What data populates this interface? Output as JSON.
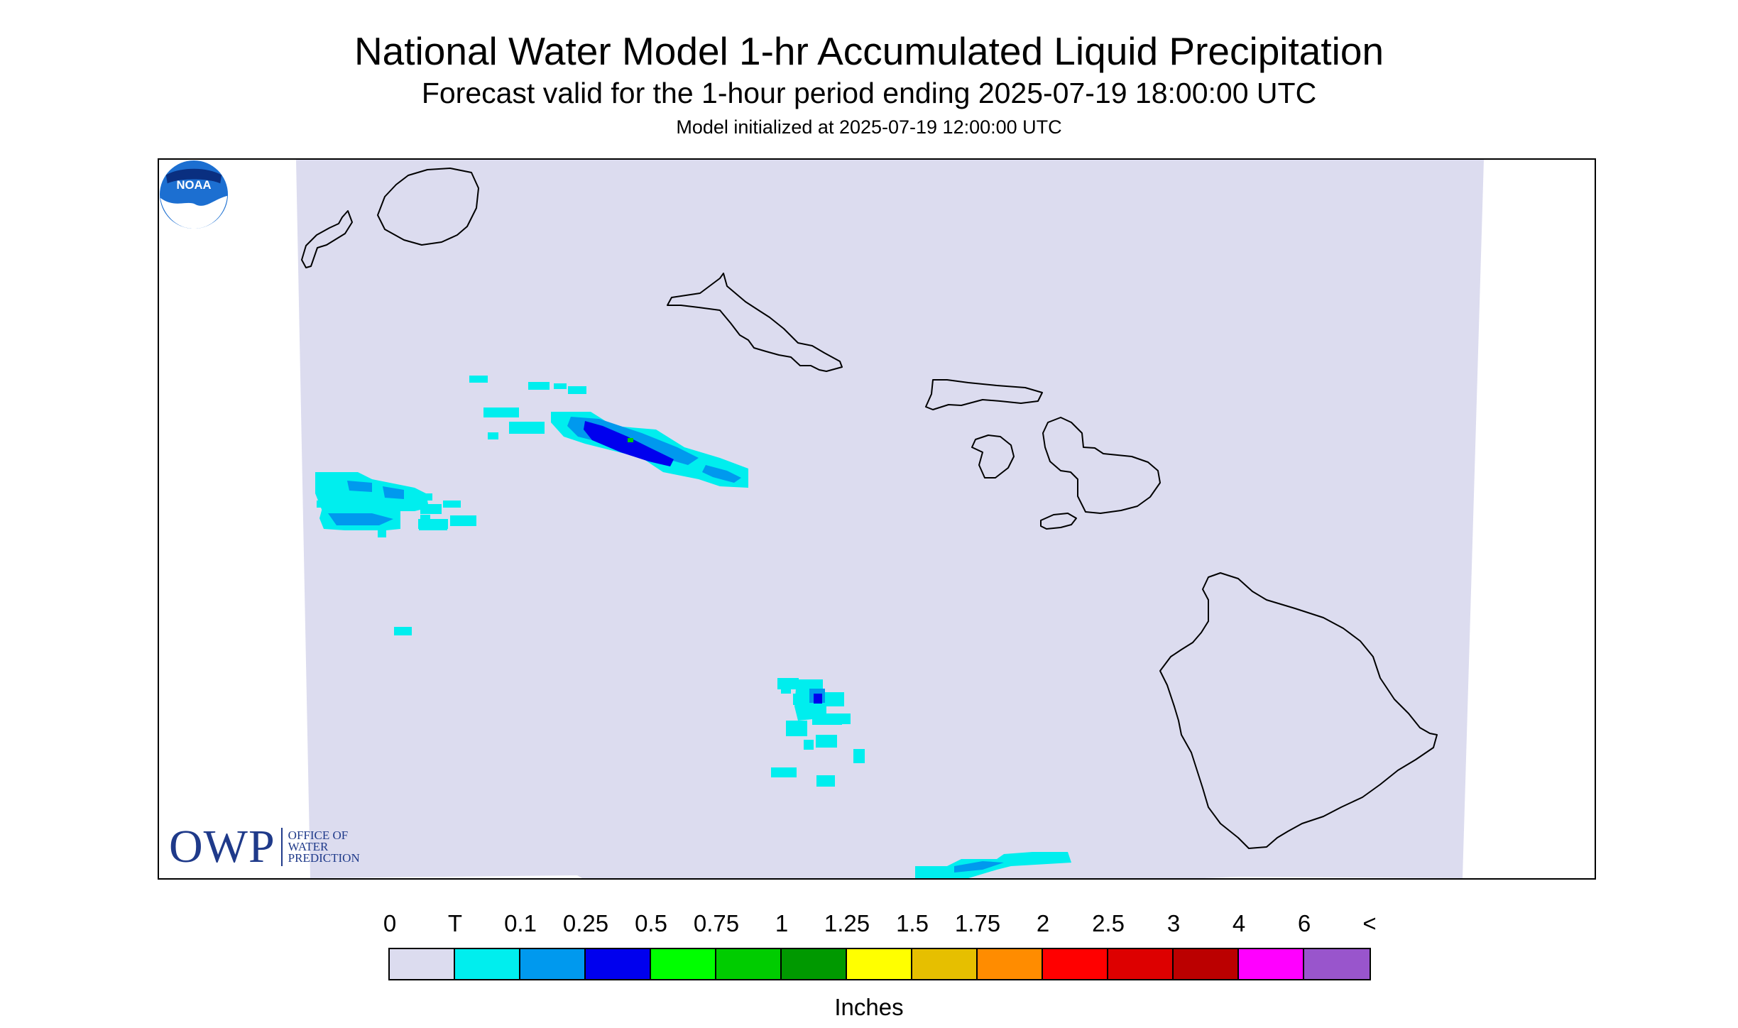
{
  "title": "National Water Model 1-hr Accumulated Liquid Precipitation",
  "subtitle": "Forecast valid for the 1-hour period ending 2025-07-19 18:00:00 UTC",
  "init_line": "Model initialized at 2025-07-19 12:00:00 UTC",
  "map": {
    "background_color": "#dcdcef",
    "coastline_color": "#000000",
    "islands": [
      "Niihau",
      "Kauai",
      "Oahu",
      "Molokai",
      "Lanai",
      "Maui",
      "Kahoolawe",
      "Hawaii"
    ]
  },
  "logos": {
    "owp_mark": "OWP",
    "owp_text_1": "OFFICE OF",
    "owp_text_2": "WATER",
    "owp_text_3": "PREDICTION",
    "noaa": "NOAA"
  },
  "legend": {
    "labels": [
      "0",
      "T",
      "0.1",
      "0.25",
      "0.5",
      "0.75",
      "1",
      "1.25",
      "1.5",
      "1.75",
      "2",
      "2.5",
      "3",
      "4",
      "6",
      "<"
    ],
    "colors": [
      "#dcdcef",
      "#00eeee",
      "#0099ee",
      "#0000ee",
      "#00ff00",
      "#00cc00",
      "#009900",
      "#ffff00",
      "#e6bf00",
      "#ff8c00",
      "#ff0000",
      "#dd0000",
      "#bb0000",
      "#ff00ff",
      "#9955cc"
    ],
    "units": "Inches"
  },
  "colors": {
    "trace": "#00eeee",
    "light": "#0099ee",
    "moderate": "#0000ee",
    "owp_blue": "#1f3a8a"
  }
}
